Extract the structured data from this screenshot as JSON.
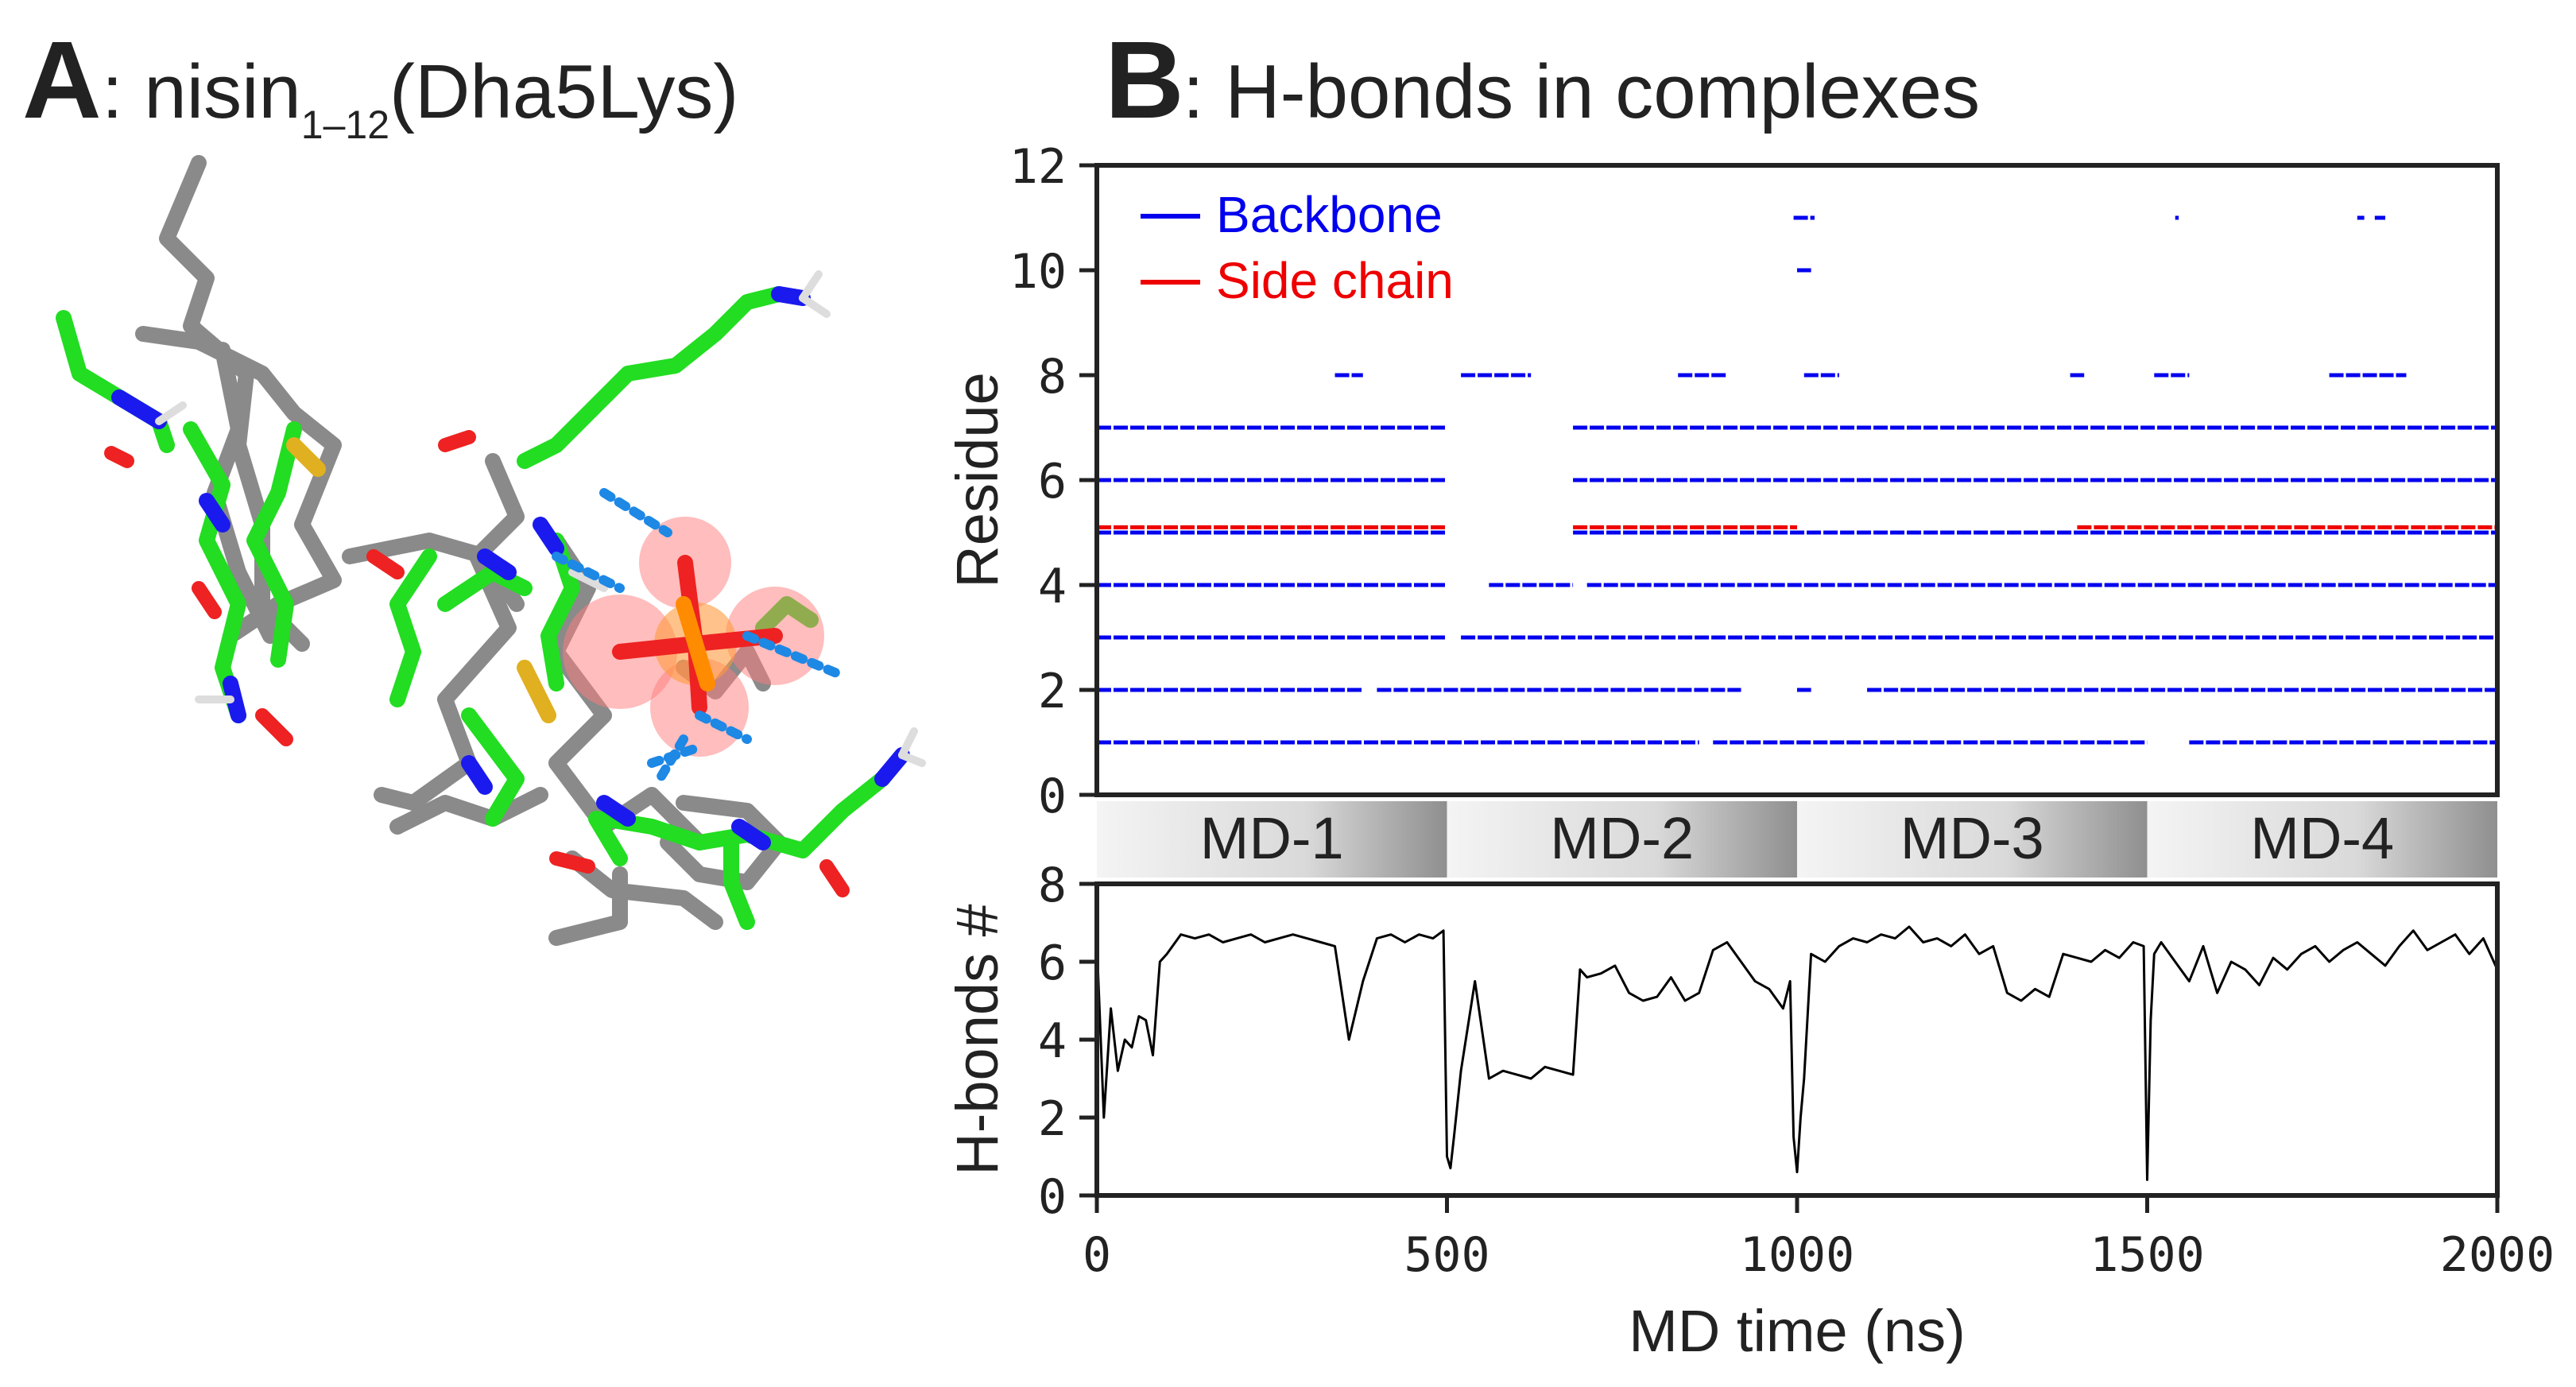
{
  "panel_a": {
    "letter": "A",
    "title_prefix": ": nisin",
    "title_subscript": "1–12",
    "title_suffix": "(Dha5Lys)",
    "image": "molecular-structure-rendering"
  },
  "panel_b": {
    "letter": "B",
    "title": ": H-bonds in complexes"
  },
  "colors": {
    "backbone": "#0000ee",
    "side_chain": "#ee0000",
    "trace": "#000000",
    "carbon_green": "#22dd22",
    "carbon_gray": "#8a8a8a",
    "nitrogen": "#1a1aee",
    "oxygen": "#ee2222",
    "sulfur": "#e0b020",
    "phosphorus": "#ff8c00",
    "hbond": "#1e88e5"
  },
  "chart_data": [
    {
      "type": "scatter",
      "ylabel": "Residue",
      "xlim": [
        0,
        2000
      ],
      "ylim": [
        0,
        12
      ],
      "yticks": [
        "0",
        "2",
        "4",
        "6",
        "8",
        "10",
        "12"
      ],
      "legend": {
        "placement": "top-left",
        "entries": [
          "Backbone",
          "Side chain"
        ]
      },
      "series": [
        {
          "name": "Backbone",
          "rows": [
            {
              "residue": 1,
              "segments": [
                [
                  0,
                  860
                ],
                [
                  880,
                  1500
                ],
                [
                  1560,
                  2000
                ]
              ]
            },
            {
              "residue": 2,
              "segments": [
                [
                  0,
                  380
                ],
                [
                  400,
                  920
                ],
                [
                  1000,
                  1020
                ],
                [
                  1100,
                  2000
                ]
              ]
            },
            {
              "residue": 3,
              "segments": [
                [
                  0,
                  500
                ],
                [
                  520,
                  2000
                ]
              ]
            },
            {
              "residue": 4,
              "segments": [
                [
                  0,
                  500
                ],
                [
                  560,
                  680
                ],
                [
                  700,
                  2000
                ]
              ]
            },
            {
              "residue": 5,
              "segments": [
                [
                  0,
                  500
                ],
                [
                  680,
                  2000
                ]
              ]
            },
            {
              "residue": 6,
              "segments": [
                [
                  0,
                  500
                ],
                [
                  680,
                  2000
                ]
              ]
            },
            {
              "residue": 7,
              "segments": [
                [
                  0,
                  500
                ],
                [
                  680,
                  2000
                ]
              ]
            },
            {
              "residue": 8,
              "segments": [
                [
                  340,
                  380
                ],
                [
                  520,
                  620
                ],
                [
                  830,
                  900
                ],
                [
                  1010,
                  1060
                ],
                [
                  1390,
                  1410
                ],
                [
                  1510,
                  1560
                ],
                [
                  1760,
                  1870
                ]
              ]
            },
            {
              "residue": 10,
              "segments": [
                [
                  1000,
                  1020
                ]
              ]
            },
            {
              "residue": 11,
              "segments": [
                [
                  995,
                  1025
                ],
                [
                  1540,
                  1545
                ],
                [
                  1800,
                  1810
                ],
                [
                  1825,
                  1840
                ]
              ]
            }
          ]
        },
        {
          "name": "Side chain",
          "rows": [
            {
              "residue": 5.1,
              "segments": [
                [
                  0,
                  500
                ],
                [
                  680,
                  1000
                ],
                [
                  1400,
                  2000
                ]
              ]
            }
          ]
        }
      ]
    },
    {
      "type": "line",
      "xlabel": "MD time (ns)",
      "ylabel": "H-bonds #",
      "xlim": [
        0,
        2000
      ],
      "ylim": [
        0,
        8
      ],
      "xticks": [
        "0",
        "500",
        "1000",
        "1500",
        "2000"
      ],
      "yticks": [
        "0",
        "2",
        "4",
        "6",
        "8"
      ],
      "run_segments": [
        {
          "label": "MD-1",
          "range": [
            0,
            500
          ]
        },
        {
          "label": "MD-2",
          "range": [
            500,
            1000
          ]
        },
        {
          "label": "MD-3",
          "range": [
            1000,
            1500
          ]
        },
        {
          "label": "MD-4",
          "range": [
            1500,
            2000
          ]
        }
      ],
      "series": [
        {
          "x": [
            0,
            10,
            20,
            30,
            40,
            50,
            60,
            70,
            80,
            90,
            100,
            120,
            140,
            160,
            180,
            200,
            220,
            240,
            260,
            280,
            300,
            320,
            340,
            360,
            380,
            400,
            420,
            440,
            460,
            480,
            495,
            500,
            505,
            510,
            520,
            540,
            560,
            580,
            600,
            620,
            640,
            660,
            680,
            690,
            700,
            720,
            740,
            760,
            780,
            800,
            820,
            840,
            860,
            880,
            900,
            920,
            940,
            960,
            980,
            990,
            995,
            1000,
            1005,
            1010,
            1020,
            1040,
            1060,
            1080,
            1100,
            1120,
            1140,
            1160,
            1180,
            1200,
            1220,
            1240,
            1260,
            1280,
            1300,
            1320,
            1340,
            1360,
            1380,
            1400,
            1420,
            1440,
            1460,
            1480,
            1495,
            1500,
            1505,
            1510,
            1520,
            1540,
            1560,
            1580,
            1600,
            1620,
            1640,
            1660,
            1680,
            1700,
            1720,
            1740,
            1760,
            1780,
            1800,
            1820,
            1840,
            1860,
            1880,
            1900,
            1920,
            1940,
            1960,
            1980,
            2000
          ],
          "y": [
            6.5,
            2.0,
            4.8,
            3.2,
            4.0,
            3.8,
            4.6,
            4.5,
            3.6,
            6.0,
            6.2,
            6.7,
            6.6,
            6.7,
            6.5,
            6.6,
            6.7,
            6.5,
            6.6,
            6.7,
            6.6,
            6.5,
            6.4,
            4.0,
            5.5,
            6.6,
            6.7,
            6.5,
            6.7,
            6.6,
            6.8,
            1.0,
            0.7,
            1.5,
            3.2,
            5.5,
            3.0,
            3.2,
            3.1,
            3.0,
            3.3,
            3.2,
            3.1,
            5.8,
            5.6,
            5.7,
            5.9,
            5.2,
            5.0,
            5.1,
            5.6,
            5.0,
            5.2,
            6.3,
            6.5,
            6.0,
            5.5,
            5.3,
            4.8,
            5.5,
            1.5,
            0.6,
            2.0,
            3.0,
            6.2,
            6.0,
            6.4,
            6.6,
            6.5,
            6.7,
            6.6,
            6.9,
            6.5,
            6.6,
            6.4,
            6.7,
            6.2,
            6.4,
            5.2,
            5.0,
            5.3,
            5.1,
            6.2,
            6.1,
            6.0,
            6.3,
            6.1,
            6.5,
            6.4,
            0.4,
            4.5,
            6.2,
            6.5,
            6.0,
            5.5,
            6.4,
            5.2,
            6.0,
            5.8,
            5.4,
            6.1,
            5.8,
            6.2,
            6.4,
            6.0,
            6.3,
            6.5,
            6.2,
            5.9,
            6.4,
            6.8,
            6.3,
            6.5,
            6.7,
            6.2,
            6.6,
            5.8
          ]
        }
      ]
    }
  ]
}
